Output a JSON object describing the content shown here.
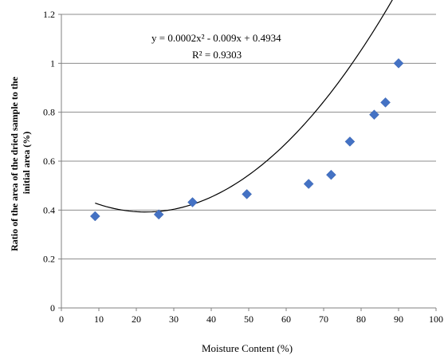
{
  "chart_data": {
    "type": "scatter",
    "xlabel": "Moisture Content (%)",
    "ylabel_lines": [
      "Ratio of the area of the dried sample to the",
      "initial area (%)"
    ],
    "xlim": [
      0,
      100
    ],
    "ylim": [
      0,
      1.2
    ],
    "x_ticks": [
      0,
      10,
      20,
      30,
      40,
      50,
      60,
      70,
      80,
      90,
      100
    ],
    "y_ticks": [
      0,
      0.2,
      0.4,
      0.6,
      0.8,
      1,
      1.2
    ],
    "x_tick_labels": [
      "0",
      "10",
      "20",
      "30",
      "40",
      "50",
      "60",
      "70",
      "80",
      "90",
      "100"
    ],
    "y_tick_labels": [
      "0",
      "0.2",
      "0.4",
      "0.6",
      "0.8",
      "1",
      "1.2"
    ],
    "grid": "horizontal",
    "legend": "none",
    "series": [
      {
        "x": [
          9,
          26,
          35,
          49.5,
          66,
          72,
          77,
          83.5,
          86.5,
          90
        ],
        "y": [
          0.375,
          0.382,
          0.432,
          0.465,
          0.507,
          0.544,
          0.68,
          0.79,
          0.84,
          1.0
        ],
        "color": "#4472C4",
        "marker": "diamond"
      }
    ],
    "trendline": {
      "type": "polynomial",
      "coefficients": [
        0.0002,
        -0.009,
        0.4934
      ],
      "x_range": [
        9,
        90
      ],
      "color": "#000000"
    },
    "annotations": {
      "equation": "y = 0.0002x² - 0.009x + 0.4934",
      "r_squared": "R² = 0.9303"
    }
  }
}
